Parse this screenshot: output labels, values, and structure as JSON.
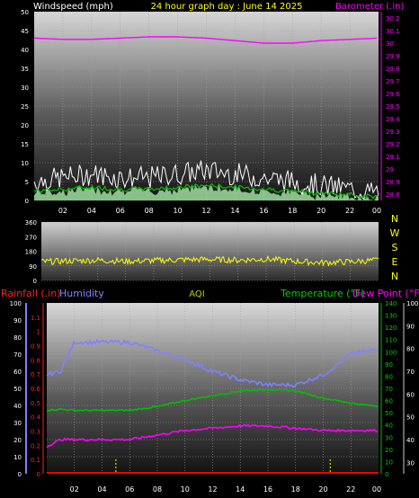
{
  "header": {
    "wind_label": "Windspeed (mph)",
    "title": "24 hour graph day : June 14 2025",
    "baro_label": "Barometer (.in)"
  },
  "direction_letters": [
    "N",
    "W",
    "S",
    "E",
    "N"
  ],
  "bottom_labels": {
    "rain": "Rainfall (.in)",
    "humidity": "Humidity",
    "aqi": "AQI",
    "temperature": "Temperature (°F)",
    "dewpoint": "Dew Point (°F)"
  },
  "colors": {
    "wind": "#ffffff",
    "wind_avg": "#00c000",
    "wind_fill": "#9fdc9f",
    "barometer": "#ff00ff",
    "direction": "#ffff00",
    "humidity": "#8080ff",
    "temperature": "#00c000",
    "dewpoint": "#ff00ff",
    "rain": "#ff0000",
    "aqi": "#ffff00",
    "grid": "#a0a0a0"
  },
  "chart_data": [
    {
      "type": "line",
      "panel": "wind_barometer",
      "x_ticks": [
        "02",
        "04",
        "06",
        "08",
        "10",
        "12",
        "14",
        "16",
        "18",
        "20",
        "22",
        "00"
      ],
      "left_axis": {
        "label": "Windspeed (mph)",
        "ticks": [
          0,
          5,
          10,
          15,
          20,
          25,
          30,
          35,
          40,
          45,
          50
        ],
        "ylim": [
          0,
          50
        ]
      },
      "right_axis": {
        "label": "Barometer (.in)",
        "ticks": [
          "28.8",
          "28.9",
          "29",
          "29.1",
          "29.2",
          "29.3",
          "29.4",
          "29.5",
          "29.6",
          "29.7",
          "29.8",
          "29.9",
          "30",
          "30.1",
          "30.2"
        ],
        "ylim": [
          28.75,
          30.25
        ]
      },
      "hours": [
        0,
        2,
        4,
        6,
        8,
        10,
        12,
        14,
        16,
        18,
        20,
        22,
        24
      ],
      "series": [
        {
          "values_gust": [
            5,
            6,
            7,
            6,
            6,
            7,
            8,
            7,
            6,
            5,
            4,
            3,
            2
          ]
        },
        {
          "values_avg": [
            2.5,
            3,
            3.5,
            3,
            3,
            3.5,
            4,
            3.5,
            3,
            2.5,
            2,
            1.5,
            1
          ]
        },
        {
          "values_baro": [
            30.04,
            30.03,
            30.03,
            30.04,
            30.05,
            30.05,
            30.04,
            30.02,
            30.0,
            30.0,
            30.02,
            30.03,
            30.04
          ]
        }
      ],
      "grid": true
    },
    {
      "type": "line",
      "panel": "wind_direction",
      "left_axis": {
        "ticks": [
          0,
          90,
          180,
          270,
          360
        ],
        "ylim": [
          0,
          360
        ]
      },
      "hours": [
        0,
        2,
        4,
        6,
        8,
        10,
        12,
        14,
        16,
        18,
        20,
        22,
        24
      ],
      "values": [
        115,
        120,
        125,
        118,
        122,
        128,
        130,
        125,
        132,
        118,
        110,
        115,
        125
      ],
      "grid": true
    },
    {
      "type": "line",
      "panel": "climate",
      "x_ticks": [
        "02",
        "04",
        "06",
        "08",
        "10",
        "12",
        "14",
        "16",
        "18",
        "20",
        "22",
        "00"
      ],
      "rain_axis": {
        "label": "Rainfall (.in)",
        "ticks": [
          "0",
          "0.1",
          "0.2",
          "0.3",
          "0.4",
          "0.5",
          "0.6",
          "0.7",
          "0.8",
          "0.9",
          "1",
          "1.1"
        ],
        "ylim": [
          0,
          1.2
        ]
      },
      "humidity_axis": {
        "label": "Humidity",
        "ticks": [
          0,
          10,
          20,
          30,
          40,
          50,
          60,
          70,
          80,
          90,
          100
        ],
        "ylim": [
          0,
          100
        ]
      },
      "temp_axis": {
        "label": "Temperature (°F)",
        "ticks": [
          0,
          10,
          20,
          30,
          40,
          50,
          60,
          70,
          80,
          90,
          100,
          110,
          120,
          130,
          140
        ],
        "ylim": [
          0,
          140
        ]
      },
      "dew_axis": {
        "label": "Dew Point (°F)",
        "ticks": [
          30,
          40,
          50,
          60,
          70,
          80,
          90,
          100
        ],
        "ylim": [
          25,
          100
        ]
      },
      "hours": [
        0,
        1,
        2,
        4,
        6,
        8,
        10,
        12,
        14,
        16,
        18,
        20,
        22,
        24
      ],
      "humidity": [
        58,
        60,
        77,
        77,
        77,
        72,
        67,
        60,
        55,
        52,
        52,
        58,
        70,
        73
      ],
      "temperature": [
        52,
        53,
        52,
        52,
        52,
        55,
        60,
        64,
        68,
        69,
        68,
        62,
        58,
        55
      ],
      "dewpoint": [
        37,
        40,
        40,
        40,
        40,
        42,
        44,
        45,
        46,
        46,
        45,
        44,
        44,
        44
      ],
      "rain": [
        0,
        0,
        0,
        0,
        0,
        0,
        0,
        0,
        0,
        0,
        0,
        0,
        0,
        0
      ],
      "aqi_marker_hours": [
        5,
        20.5
      ],
      "grid": true
    }
  ]
}
